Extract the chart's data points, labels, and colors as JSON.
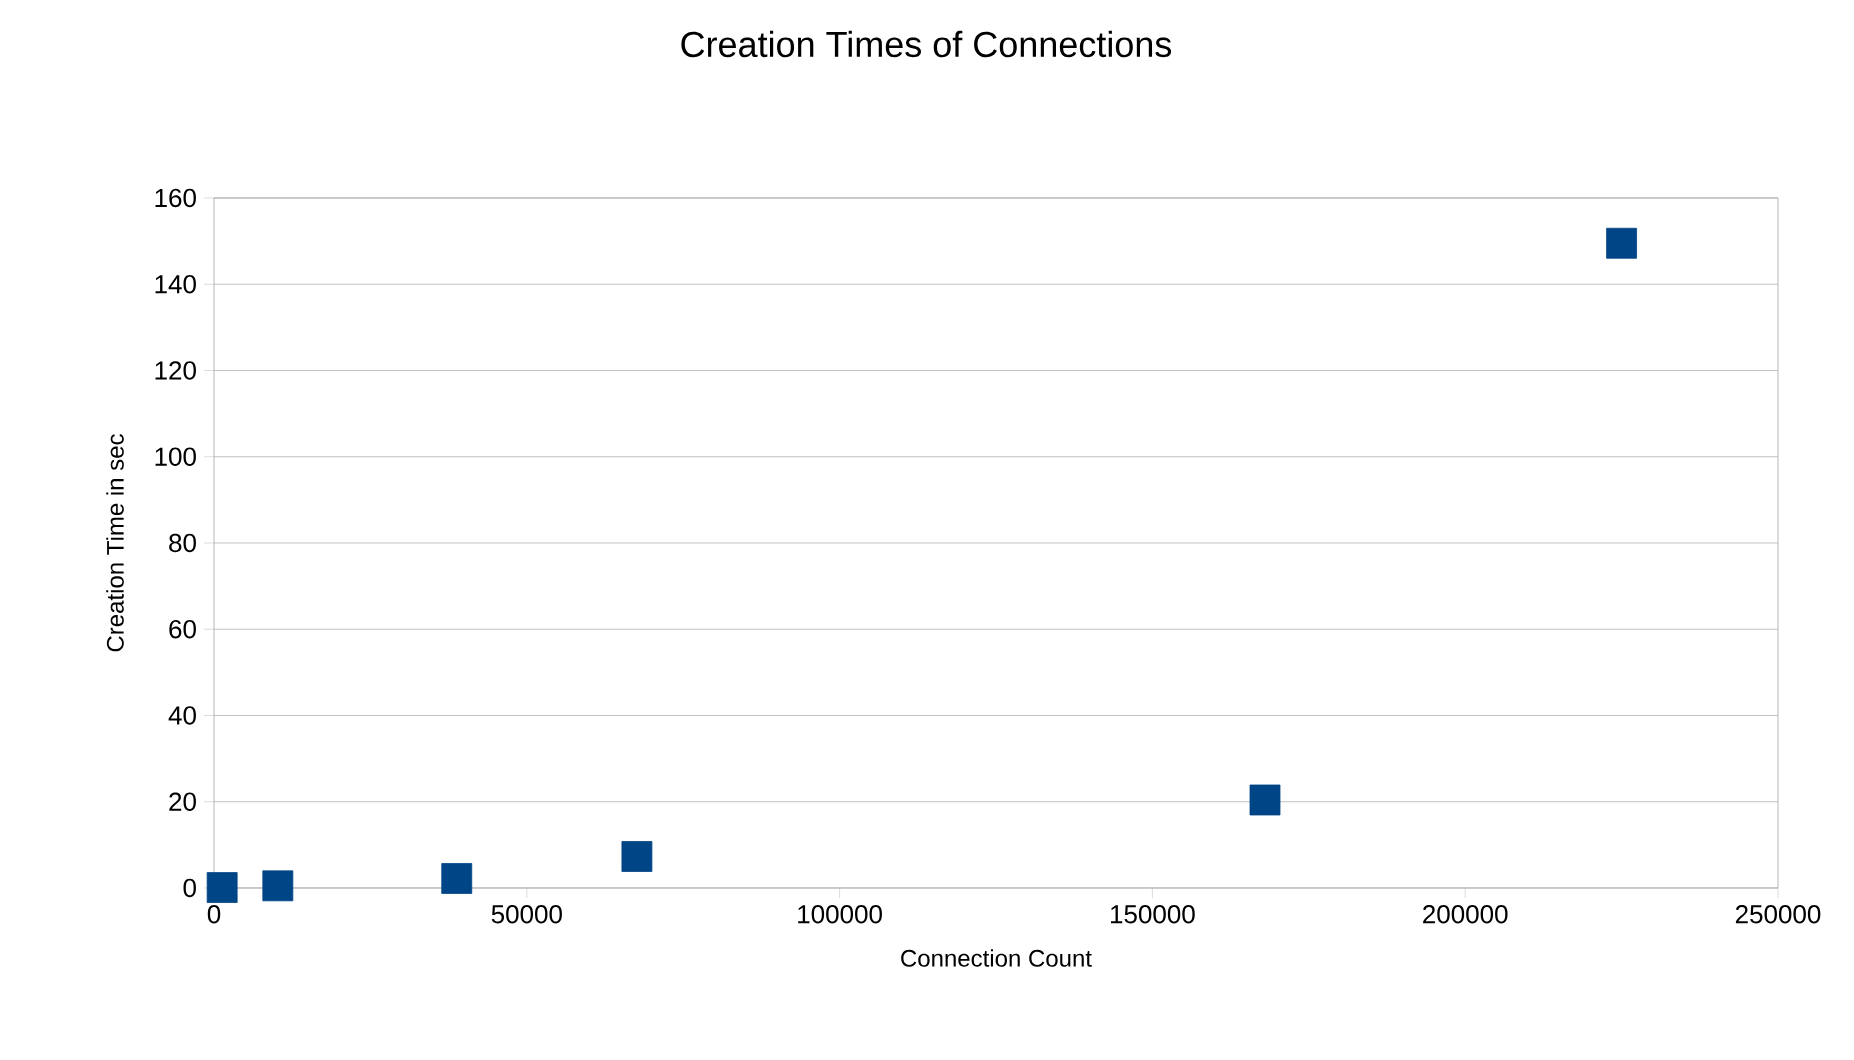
{
  "chart_data": {
    "type": "scatter",
    "title": "Creation Times of Connections",
    "xlabel": "Connection Count",
    "ylabel": "Creation Time in sec",
    "x": [
      1300,
      10200,
      38800,
      67600,
      168000,
      225000
    ],
    "values": [
      0.1,
      0.5,
      2.2,
      7.3,
      20.4,
      149.5
    ],
    "color": "#004586",
    "marker": "square",
    "grid": "y",
    "xlim": [
      0,
      250000
    ],
    "xticks": [
      0,
      50000,
      100000,
      150000,
      200000,
      250000
    ],
    "ylim": [
      0,
      160
    ],
    "yticks": [
      0,
      20,
      40,
      60,
      80,
      100,
      120,
      140,
      160
    ]
  }
}
